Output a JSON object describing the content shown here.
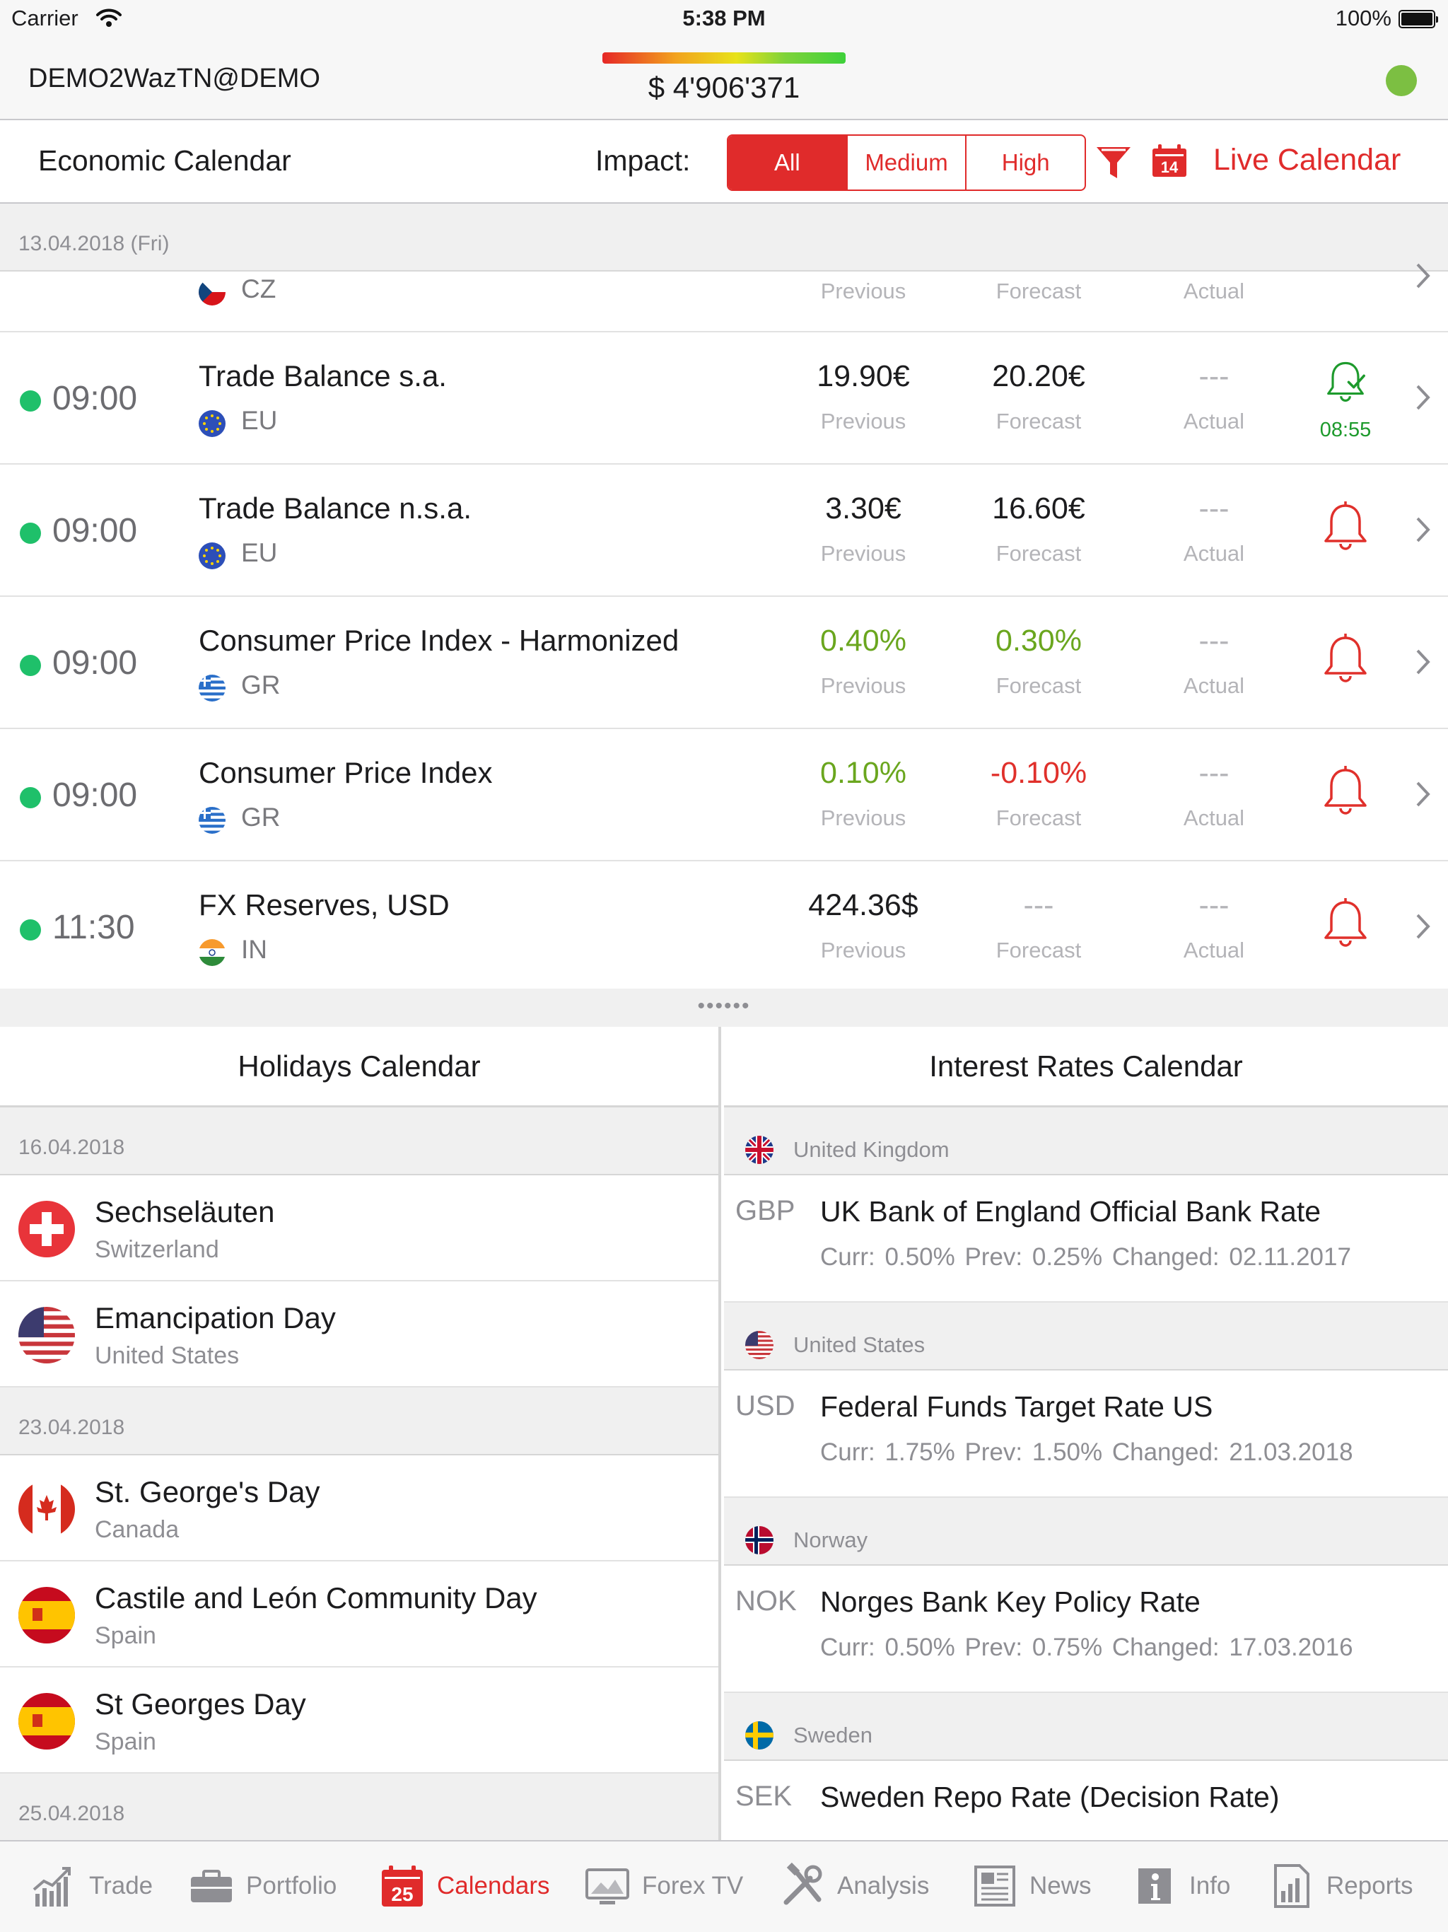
{
  "status_bar": {
    "carrier": "Carrier",
    "time": "5:38 PM",
    "battery": "100%"
  },
  "account": {
    "name": "DEMO2WazTN@DEMO",
    "balance": "$ 4'906'371",
    "status_color": "#7cbf42"
  },
  "economic_calendar": {
    "title": "Economic Calendar",
    "impact_label": "Impact:",
    "impact_options": [
      "All",
      "Medium",
      "High"
    ],
    "impact_selected": "All",
    "live_calendar_label": "Live Calendar",
    "calendar_icon_day": "14",
    "date_header": "13.04.2018 (Fri)",
    "partial_row": {
      "country": "CZ",
      "previous_label": "Previous",
      "forecast_label": "Forecast",
      "actual_label": "Actual"
    },
    "events": [
      {
        "time": "09:00",
        "name": "Trade Balance s.a.",
        "country": "EU",
        "previous": "19.90€",
        "forecast": "20.20€",
        "actual": "---",
        "previous_label": "Previous",
        "forecast_label": "Forecast",
        "actual_label": "Actual",
        "alert_time": "08:55"
      },
      {
        "time": "09:00",
        "name": "Trade Balance n.s.a.",
        "country": "EU",
        "previous": "3.30€",
        "forecast": "16.60€",
        "actual": "---",
        "previous_label": "Previous",
        "forecast_label": "Forecast",
        "actual_label": "Actual"
      },
      {
        "time": "09:00",
        "name": "Consumer Price Index - Harmonized",
        "country": "GR",
        "previous": "0.40%",
        "forecast": "0.30%",
        "actual": "---",
        "previous_label": "Previous",
        "forecast_label": "Forecast",
        "actual_label": "Actual"
      },
      {
        "time": "09:00",
        "name": "Consumer Price Index",
        "country": "GR",
        "previous": "0.10%",
        "forecast": "-0.10%",
        "actual": "---",
        "previous_label": "Previous",
        "forecast_label": "Forecast",
        "actual_label": "Actual"
      },
      {
        "time": "11:30",
        "name": "FX Reserves, USD",
        "country": "IN",
        "previous": "424.36$",
        "forecast": "---",
        "actual": "---",
        "previous_label": "Previous",
        "forecast_label": "Forecast",
        "actual_label": "Actual"
      }
    ]
  },
  "splitter": {
    "grip": "••••••"
  },
  "holidays": {
    "title": "Holidays Calendar",
    "dates": [
      {
        "date": "16.04.2018",
        "items": [
          {
            "name": "Sechseläuten",
            "country": "Switzerland"
          },
          {
            "name": "Emancipation Day",
            "country": "United States"
          }
        ]
      },
      {
        "date": "23.04.2018",
        "items": [
          {
            "name": "St. George's Day",
            "country": "Canada"
          },
          {
            "name": "Castile and León Community Day",
            "country": "Spain"
          },
          {
            "name": "St Georges Day",
            "country": "Spain"
          }
        ]
      },
      {
        "date": "25.04.2018",
        "items": []
      }
    ]
  },
  "interest_rates": {
    "title": "Interest Rates Calendar",
    "countries": [
      {
        "country": "United Kingdom",
        "currency": "GBP",
        "name": "UK Bank of England Official Bank Rate",
        "detail": "Curr: 0.50%   Prev: 0.25%   Changed: 02.11.2017"
      },
      {
        "country": "United States",
        "currency": "USD",
        "name": "Federal Funds Target Rate US",
        "detail": "Curr: 1.75%   Prev: 1.50%   Changed: 21.03.2018"
      },
      {
        "country": "Norway",
        "currency": "NOK",
        "name": "Norges Bank Key Policy Rate",
        "detail": "Curr: 0.50%   Prev: 0.75%   Changed: 17.03.2016"
      },
      {
        "country": "Sweden",
        "currency": "SEK",
        "name": "Sweden Repo Rate (Decision Rate)",
        "detail": ""
      }
    ]
  },
  "tabs": [
    {
      "label": "Trade",
      "icon": "trade-chart-icon"
    },
    {
      "label": "Portfolio",
      "icon": "briefcase-icon"
    },
    {
      "label": "Calendars",
      "icon": "calendar-icon",
      "active": true,
      "day": "25"
    },
    {
      "label": "Forex TV",
      "icon": "tv-icon"
    },
    {
      "label": "Analysis",
      "icon": "tools-icon"
    },
    {
      "label": "News",
      "icon": "newspaper-icon"
    },
    {
      "label": "Info",
      "icon": "info-icon"
    },
    {
      "label": "Reports",
      "icon": "reports-icon"
    }
  ],
  "colors": {
    "accent": "#e02b2b",
    "positive": "#6aa61e",
    "negative": "#e0302b",
    "live_dot": "#1fc06a",
    "alert_set": "#1d9a2c"
  }
}
